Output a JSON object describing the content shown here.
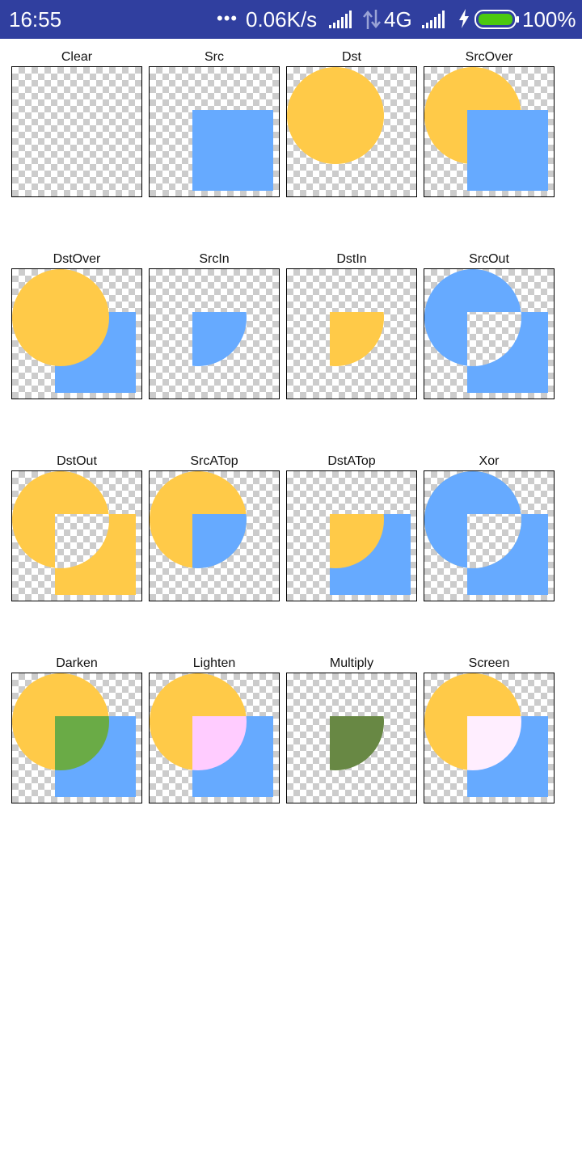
{
  "status_bar": {
    "time": "16:55",
    "dots": "•••",
    "network_speed": "0.06K/s",
    "network_type": "4G",
    "battery_percent": "100%",
    "icons": [
      "signal-icon",
      "data-arrows-icon",
      "signal-icon",
      "charging-bolt-icon",
      "battery-icon"
    ],
    "colors": {
      "background": "#303f9f",
      "battery_fill": "#4cc90f"
    }
  },
  "colors": {
    "dst_circle": "#ffca48",
    "src_square": "#66aaff"
  },
  "modes": [
    {
      "label": "Clear"
    },
    {
      "label": "Src"
    },
    {
      "label": "Dst"
    },
    {
      "label": "SrcOver"
    },
    {
      "label": "DstOver"
    },
    {
      "label": "SrcIn"
    },
    {
      "label": "DstIn"
    },
    {
      "label": "SrcOut"
    },
    {
      "label": "DstOut"
    },
    {
      "label": "SrcATop"
    },
    {
      "label": "DstATop"
    },
    {
      "label": "Xor"
    },
    {
      "label": "Darken",
      "overlap_color": "#6aab46"
    },
    {
      "label": "Lighten",
      "overlap_color": "#ffccff"
    },
    {
      "label": "Multiply",
      "overlap_color": "#688844"
    },
    {
      "label": "Screen",
      "overlap_color": "#ffeeff"
    }
  ]
}
